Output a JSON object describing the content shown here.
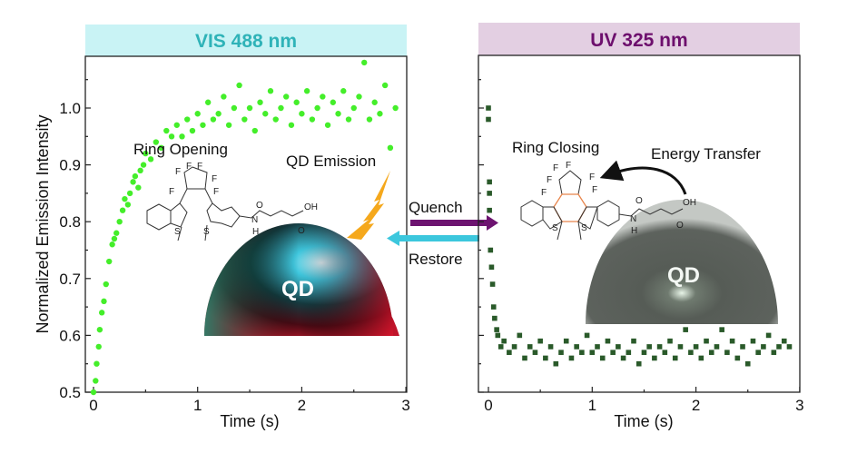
{
  "panels": {
    "left": {
      "header": "VIS 488 nm",
      "header_bg": "#c9f3f5",
      "header_color": "#2fb3b8",
      "ring_label": "Ring Opening",
      "emission_label": "QD Emission",
      "qd_label": "QD"
    },
    "right": {
      "header": "UV 325 nm",
      "header_bg": "#e3cfe2",
      "header_color": "#6d0f6d",
      "ring_label": "Ring Closing",
      "transfer_label": "Energy Transfer",
      "qd_label": "QD"
    }
  },
  "arrows": {
    "quench": "Quench",
    "restore": "Restore",
    "quench_color": "#6d1470",
    "restore_color": "#3cc7dd"
  },
  "atoms": {
    "F": "F",
    "S": "S",
    "O": "O",
    "OH": "OH",
    "N": "N",
    "H": "H"
  },
  "chart_data": [
    {
      "type": "scatter",
      "title": "VIS 488 nm",
      "xlabel": "Time (s)",
      "ylabel": "Normalized Emission Intensity",
      "xlim": [
        0,
        3
      ],
      "ylim": [
        0.5,
        1.09
      ],
      "xticks": [
        "0",
        "1",
        "2",
        "3"
      ],
      "yticks": [
        "0.5",
        "0.6",
        "0.7",
        "0.8",
        "0.9",
        "1.0"
      ],
      "marker": "circle",
      "color": "#44ee2a",
      "points": [
        [
          0,
          0.5
        ],
        [
          0.02,
          0.52
        ],
        [
          0.03,
          0.55
        ],
        [
          0.05,
          0.58
        ],
        [
          0.06,
          0.61
        ],
        [
          0.08,
          0.64
        ],
        [
          0.1,
          0.66
        ],
        [
          0.12,
          0.69
        ],
        [
          0.15,
          0.73
        ],
        [
          0.18,
          0.76
        ],
        [
          0.2,
          0.77
        ],
        [
          0.22,
          0.78
        ],
        [
          0.25,
          0.8
        ],
        [
          0.28,
          0.82
        ],
        [
          0.3,
          0.84
        ],
        [
          0.33,
          0.83
        ],
        [
          0.35,
          0.85
        ],
        [
          0.38,
          0.87
        ],
        [
          0.4,
          0.88
        ],
        [
          0.43,
          0.86
        ],
        [
          0.45,
          0.89
        ],
        [
          0.48,
          0.9
        ],
        [
          0.5,
          0.92
        ],
        [
          0.55,
          0.91
        ],
        [
          0.6,
          0.94
        ],
        [
          0.65,
          0.93
        ],
        [
          0.7,
          0.96
        ],
        [
          0.75,
          0.95
        ],
        [
          0.8,
          0.97
        ],
        [
          0.85,
          0.95
        ],
        [
          0.9,
          0.98
        ],
        [
          0.95,
          0.96
        ],
        [
          1.0,
          0.99
        ],
        [
          1.05,
          0.97
        ],
        [
          1.1,
          1.01
        ],
        [
          1.15,
          0.98
        ],
        [
          1.2,
          0.99
        ],
        [
          1.25,
          1.02
        ],
        [
          1.3,
          0.97
        ],
        [
          1.35,
          1.0
        ],
        [
          1.4,
          1.04
        ],
        [
          1.45,
          0.98
        ],
        [
          1.5,
          1.0
        ],
        [
          1.55,
          0.96
        ],
        [
          1.6,
          1.01
        ],
        [
          1.65,
          0.99
        ],
        [
          1.7,
          1.03
        ],
        [
          1.75,
          0.98
        ],
        [
          1.8,
          1.0
        ],
        [
          1.85,
          1.02
        ],
        [
          1.9,
          0.97
        ],
        [
          1.95,
          1.01
        ],
        [
          2.0,
          0.99
        ],
        [
          2.05,
          1.03
        ],
        [
          2.1,
          0.98
        ],
        [
          2.15,
          1.0
        ],
        [
          2.2,
          1.02
        ],
        [
          2.25,
          0.97
        ],
        [
          2.3,
          1.01
        ],
        [
          2.35,
          0.99
        ],
        [
          2.4,
          1.03
        ],
        [
          2.45,
          0.98
        ],
        [
          2.5,
          1.0
        ],
        [
          2.55,
          1.02
        ],
        [
          2.6,
          1.08
        ],
        [
          2.65,
          0.98
        ],
        [
          2.7,
          1.01
        ],
        [
          2.75,
          0.99
        ],
        [
          2.8,
          1.04
        ],
        [
          2.85,
          0.93
        ],
        [
          2.9,
          1.0
        ]
      ]
    },
    {
      "type": "scatter",
      "title": "UV 325 nm",
      "xlabel": "Time (s)",
      "xlim": [
        0,
        3
      ],
      "ylim": [
        0.5,
        1.09
      ],
      "xticks": [
        "0",
        "1",
        "2",
        "3"
      ],
      "marker": "square",
      "color": "#2a5a2a",
      "points": [
        [
          0.0,
          1.0
        ],
        [
          0.0,
          0.98
        ],
        [
          0.01,
          0.87
        ],
        [
          0.01,
          0.85
        ],
        [
          0.01,
          0.82
        ],
        [
          0.02,
          0.75
        ],
        [
          0.03,
          0.72
        ],
        [
          0.04,
          0.69
        ],
        [
          0.05,
          0.65
        ],
        [
          0.06,
          0.63
        ],
        [
          0.08,
          0.61
        ],
        [
          0.09,
          0.6
        ],
        [
          0.12,
          0.58
        ],
        [
          0.15,
          0.59
        ],
        [
          0.2,
          0.57
        ],
        [
          0.25,
          0.58
        ],
        [
          0.3,
          0.6
        ],
        [
          0.35,
          0.56
        ],
        [
          0.4,
          0.58
        ],
        [
          0.45,
          0.57
        ],
        [
          0.5,
          0.59
        ],
        [
          0.55,
          0.56
        ],
        [
          0.6,
          0.58
        ],
        [
          0.65,
          0.55
        ],
        [
          0.7,
          0.57
        ],
        [
          0.75,
          0.59
        ],
        [
          0.8,
          0.56
        ],
        [
          0.85,
          0.58
        ],
        [
          0.9,
          0.57
        ],
        [
          0.95,
          0.6
        ],
        [
          1.0,
          0.57
        ],
        [
          1.05,
          0.58
        ],
        [
          1.1,
          0.56
        ],
        [
          1.15,
          0.59
        ],
        [
          1.2,
          0.57
        ],
        [
          1.25,
          0.58
        ],
        [
          1.3,
          0.56
        ],
        [
          1.35,
          0.57
        ],
        [
          1.4,
          0.59
        ],
        [
          1.45,
          0.55
        ],
        [
          1.5,
          0.57
        ],
        [
          1.55,
          0.58
        ],
        [
          1.6,
          0.56
        ],
        [
          1.65,
          0.58
        ],
        [
          1.7,
          0.57
        ],
        [
          1.75,
          0.59
        ],
        [
          1.8,
          0.56
        ],
        [
          1.85,
          0.58
        ],
        [
          1.9,
          0.61
        ],
        [
          1.95,
          0.57
        ],
        [
          2.0,
          0.58
        ],
        [
          2.05,
          0.56
        ],
        [
          2.1,
          0.59
        ],
        [
          2.15,
          0.57
        ],
        [
          2.2,
          0.58
        ],
        [
          2.25,
          0.61
        ],
        [
          2.3,
          0.57
        ],
        [
          2.35,
          0.59
        ],
        [
          2.4,
          0.56
        ],
        [
          2.45,
          0.58
        ],
        [
          2.5,
          0.55
        ],
        [
          2.55,
          0.59
        ],
        [
          2.6,
          0.57
        ],
        [
          2.65,
          0.58
        ],
        [
          2.7,
          0.6
        ],
        [
          2.75,
          0.57
        ],
        [
          2.8,
          0.58
        ],
        [
          2.85,
          0.59
        ],
        [
          2.9,
          0.58
        ]
      ]
    }
  ]
}
